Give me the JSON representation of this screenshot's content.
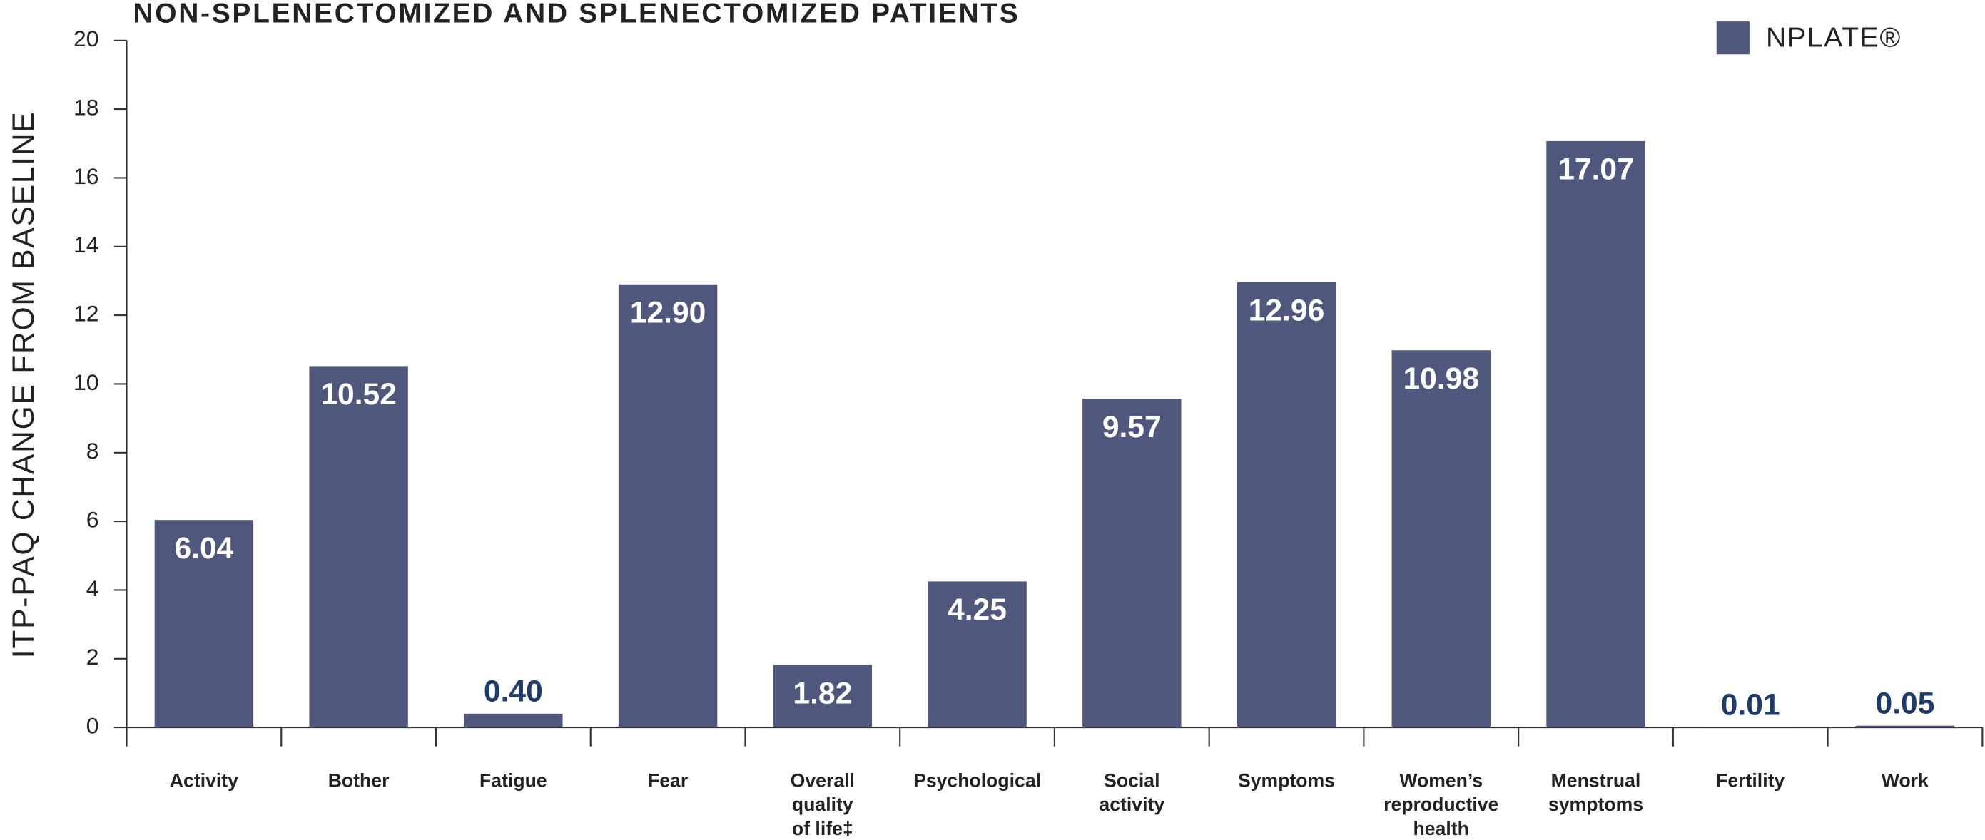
{
  "chart_data": {
    "type": "bar",
    "title": "NON-SPLENECTOMIZED AND SPLENECTOMIZED PATIENTS",
    "y_label": "ITP-PAQ CHANGE FROM BASELINE",
    "categories": [
      "Activity",
      "Bother",
      "Fatigue",
      "Fear",
      "Overall\nquality\nof life‡",
      "Psychological",
      "Social\nactivity",
      "Symptoms",
      "Women’s\nreproductive\nhealth",
      "Menstrual\nsymptoms",
      "Fertility",
      "Work"
    ],
    "series": [
      {
        "name": "NPLATE®",
        "color": "#4f577c",
        "values": [
          6.04,
          10.52,
          0.4,
          12.9,
          1.82,
          4.25,
          9.57,
          12.96,
          10.98,
          17.07,
          0.01,
          0.05
        ],
        "value_labels": [
          "6.04",
          "10.52",
          "0.40",
          "12.90",
          "1.82",
          "4.25",
          "9.57",
          "12.96",
          "10.98",
          "17.07",
          "0.01",
          "0.05"
        ]
      }
    ],
    "ylim": [
      0,
      20
    ],
    "yticks": [
      0,
      2,
      4,
      6,
      8,
      10,
      12,
      14,
      16,
      18,
      20
    ],
    "legend": "top-right"
  }
}
